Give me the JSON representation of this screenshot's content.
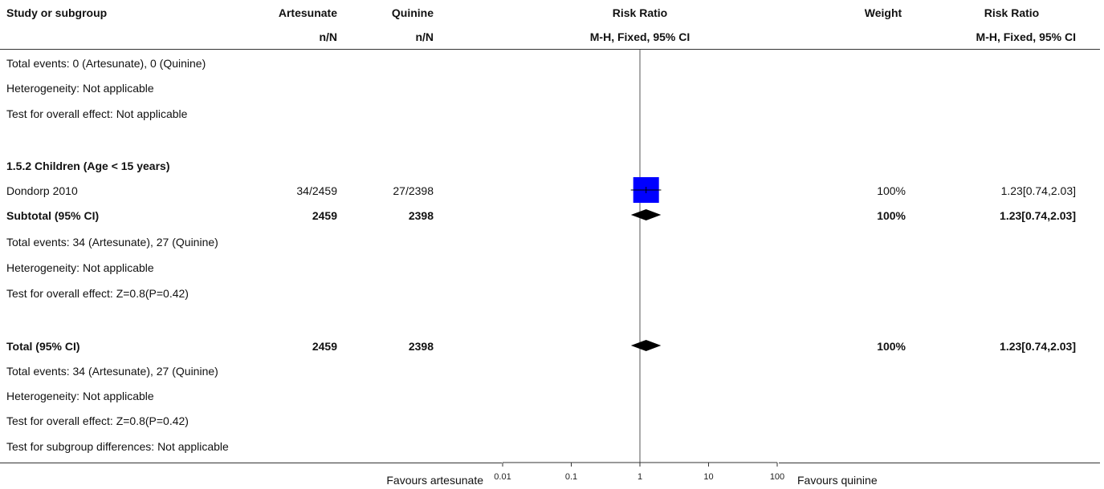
{
  "columns": {
    "study_header": "Study or subgroup",
    "exp_header": "Artesunate",
    "exp_sub": "n/N",
    "ctrl_header": "Quinine",
    "ctrl_sub": "n/N",
    "plot_header": "Risk Ratio",
    "plot_sub": "M-H, Fixed, 95% CI",
    "weight_header": "Weight",
    "rr_header": "Risk Ratio",
    "rr_sub": "M-H, Fixed, 95% CI"
  },
  "subgroup1": {
    "total_events": "Total events: 0 (Artesunate), 0 (Quinine)",
    "heterogeneity": "Heterogeneity: Not applicable",
    "overall_effect": "Test for overall effect: Not applicable"
  },
  "subgroup2": {
    "title": "1.5.2 Children (Age < 15 years)",
    "study": {
      "name": "Dondorp 2010",
      "exp": "34/2459",
      "ctrl": "27/2398",
      "weight": "100%",
      "rr": "1.23[0.74,2.03]"
    },
    "subtotal": {
      "label": "Subtotal (95% CI)",
      "exp": "2459",
      "ctrl": "2398",
      "weight": "100%",
      "rr": "1.23[0.74,2.03]"
    },
    "total_events": "Total events: 34 (Artesunate), 27 (Quinine)",
    "heterogeneity": "Heterogeneity: Not applicable",
    "overall_effect": "Test for overall effect: Z=0.8(P=0.42)"
  },
  "total": {
    "label": "Total (95% CI)",
    "exp": "2459",
    "ctrl": "2398",
    "weight": "100%",
    "rr": "1.23[0.74,2.03]",
    "total_events": "Total events: 34 (Artesunate), 27 (Quinine)",
    "heterogeneity": "Heterogeneity: Not applicable",
    "overall_effect": "Test for overall effect: Z=0.8(P=0.42)",
    "subgroup_diff": "Test for subgroup differences: Not applicable"
  },
  "axis": {
    "favours_left": "Favours artesunate",
    "favours_right": "Favours quinine"
  },
  "chart_data": {
    "type": "forest",
    "scale": "log",
    "xlim": [
      0.01,
      100
    ],
    "xticks": [
      0.01,
      0.1,
      1,
      10,
      100
    ],
    "xtick_labels": [
      "0.01",
      "0.1",
      "1",
      "10",
      "100"
    ],
    "null_line": 1,
    "study_color": "#0000ff",
    "diamond_color": "#000000",
    "studies": [
      {
        "name": "Dondorp 2010",
        "rr": 1.23,
        "lo": 0.74,
        "hi": 2.03,
        "weight": 100
      }
    ],
    "diamonds": [
      {
        "name": "Subtotal (95% CI)",
        "rr": 1.23,
        "lo": 0.74,
        "hi": 2.03
      },
      {
        "name": "Total (95% CI)",
        "rr": 1.23,
        "lo": 0.74,
        "hi": 2.03
      }
    ]
  }
}
